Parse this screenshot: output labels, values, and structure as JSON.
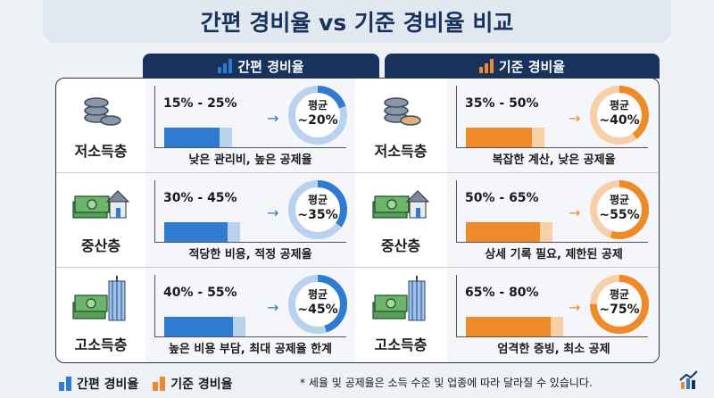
{
  "title": "간편 경비율 vs 기준 경비율 비교",
  "tabs": {
    "simple": "간편 경비율",
    "standard": "기준 경비율"
  },
  "colors": {
    "simple": "#2f7bd1",
    "simple_light": "#b9d3ee",
    "standard": "#ef8a2a",
    "standard_light": "#f8cfa6",
    "navy": "#17325c"
  },
  "avg_label": "평균",
  "rows": [
    {
      "group": "저소득층",
      "icon": "coins-icon",
      "simple": {
        "range": "15% - 25%",
        "avg": "~20%",
        "avg_value": 20,
        "caption": "낮은 관리비, 높은 공제율"
      },
      "standard": {
        "range": "35% - 50%",
        "avg": "~40%",
        "avg_value": 40,
        "caption": "복잡한 계산, 낮은 공제율"
      }
    },
    {
      "group": "중산층",
      "icon": "money-house-icon",
      "simple": {
        "range": "30% - 45%",
        "avg": "~35%",
        "avg_value": 35,
        "caption": "적당한 비용, 적정 공제율"
      },
      "standard": {
        "range": "50% - 65%",
        "avg": "~55%",
        "avg_value": 55,
        "caption": "상세 기록 필요, 제한된 공제"
      }
    },
    {
      "group": "고소득층",
      "icon": "money-building-icon",
      "simple": {
        "range": "40% - 55%",
        "avg": "~45%",
        "avg_value": 45,
        "caption": "높은 비용 부담, 최대 공제율 한계"
      },
      "standard": {
        "range": "65% - 80%",
        "avg": "~75%",
        "avg_value": 75,
        "caption": "엄격한 증빙, 최소 공제"
      }
    }
  ],
  "legend": {
    "simple": "간편 경비율",
    "standard": "기준 경비율"
  },
  "note": "* 세율 및 공제율은 소득 수준 및 업종에 따라 달라질 수 있습니다."
}
